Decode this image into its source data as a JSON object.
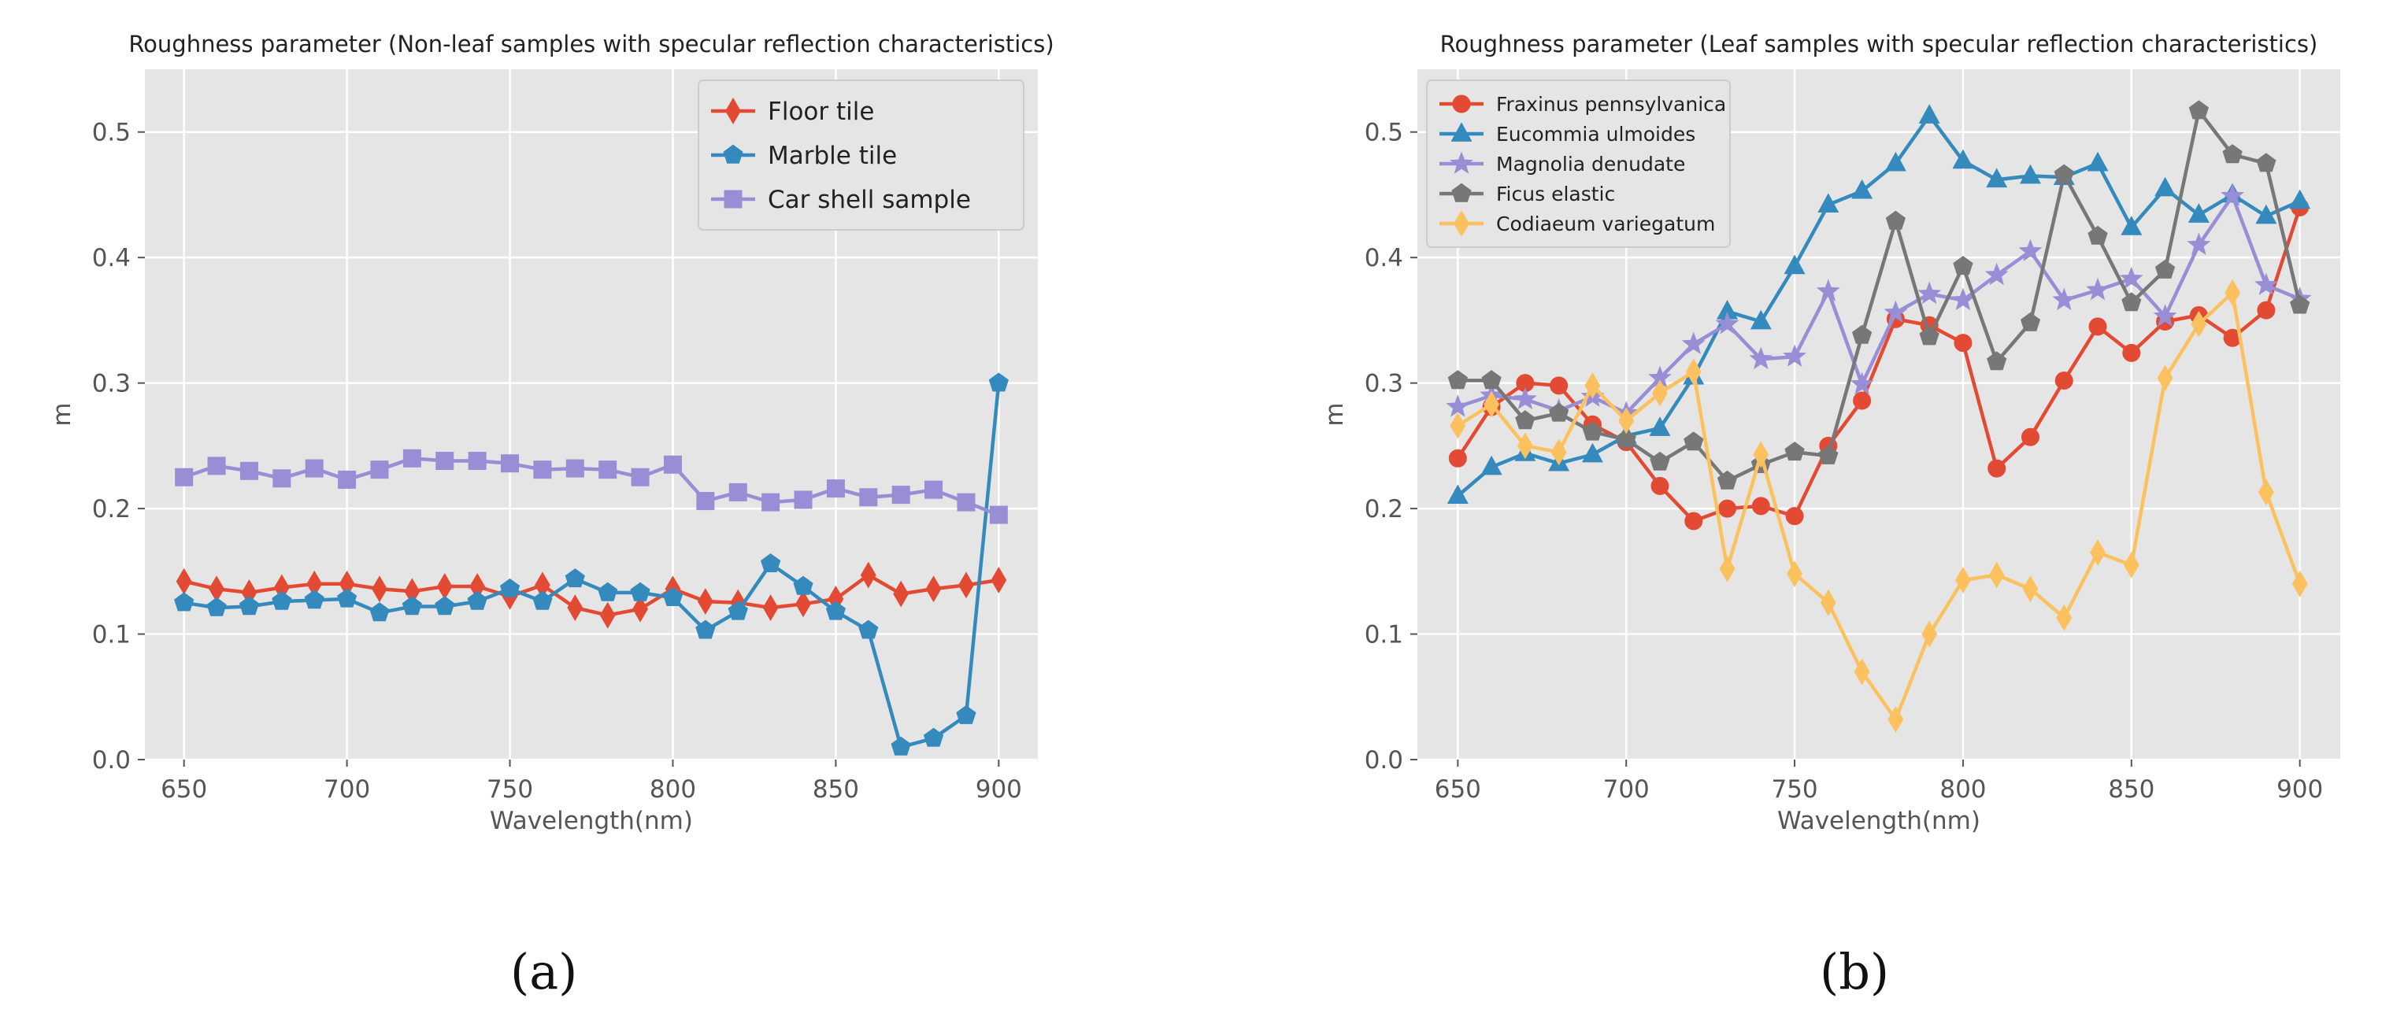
{
  "chart_data": [
    {
      "id": "a",
      "type": "line",
      "title": "Roughness parameter (Non-leaf samples with specular reflection characteristics)",
      "xlabel": "Wavelength(nm)",
      "ylabel": "m",
      "xlim": [
        638,
        912
      ],
      "ylim": [
        0,
        0.55
      ],
      "xticks": [
        650,
        700,
        750,
        800,
        850,
        900
      ],
      "yticks": [
        0.0,
        0.1,
        0.2,
        0.3,
        0.4,
        0.5
      ],
      "grid": true,
      "legend_position": "top-right",
      "x": [
        650,
        660,
        670,
        680,
        690,
        700,
        710,
        720,
        730,
        740,
        750,
        760,
        770,
        780,
        790,
        800,
        810,
        820,
        830,
        840,
        850,
        860,
        870,
        880,
        890,
        900
      ],
      "series": [
        {
          "name": "Floor tile",
          "color": "#e24a33",
          "marker": "diamond",
          "values": [
            0.142,
            0.136,
            0.133,
            0.137,
            0.14,
            0.14,
            0.136,
            0.134,
            0.138,
            0.138,
            0.13,
            0.139,
            0.121,
            0.115,
            0.12,
            0.136,
            0.126,
            0.125,
            0.121,
            0.124,
            0.128,
            0.147,
            0.132,
            0.136,
            0.139,
            0.143
          ]
        },
        {
          "name": "Marble tile",
          "color": "#348abd",
          "marker": "pentagon",
          "values": [
            0.125,
            0.121,
            0.122,
            0.126,
            0.127,
            0.128,
            0.117,
            0.122,
            0.122,
            0.126,
            0.136,
            0.126,
            0.144,
            0.133,
            0.133,
            0.129,
            0.103,
            0.118,
            0.156,
            0.138,
            0.118,
            0.103,
            0.01,
            0.017,
            0.035,
            0.3
          ]
        },
        {
          "name": "Car shell sample",
          "color": "#988ed5",
          "marker": "square",
          "values": [
            0.225,
            0.234,
            0.23,
            0.224,
            0.232,
            0.223,
            0.231,
            0.24,
            0.238,
            0.238,
            0.236,
            0.231,
            0.232,
            0.231,
            0.225,
            0.235,
            0.206,
            0.213,
            0.205,
            0.207,
            0.216,
            0.209,
            0.211,
            0.215,
            0.205,
            0.195
          ]
        }
      ],
      "caption": "(a)"
    },
    {
      "id": "b",
      "type": "line",
      "title": "Roughness parameter (Leaf samples with specular reflection characteristics)",
      "xlabel": "Wavelength(nm)",
      "ylabel": "m",
      "xlim": [
        638,
        912
      ],
      "ylim": [
        0,
        0.55
      ],
      "xticks": [
        650,
        700,
        750,
        800,
        850,
        900
      ],
      "yticks": [
        0.0,
        0.1,
        0.2,
        0.3,
        0.4,
        0.5
      ],
      "grid": true,
      "legend_position": "top-left",
      "x": [
        650,
        660,
        670,
        680,
        690,
        700,
        710,
        720,
        730,
        740,
        750,
        760,
        770,
        780,
        790,
        800,
        810,
        820,
        830,
        840,
        850,
        860,
        870,
        880,
        890,
        900
      ],
      "series": [
        {
          "name": "Fraxinus pennsylvanica",
          "color": "#e24a33",
          "marker": "circle",
          "values": [
            0.24,
            0.281,
            0.3,
            0.298,
            0.267,
            0.253,
            0.218,
            0.19,
            0.2,
            0.202,
            0.194,
            0.25,
            0.286,
            0.351,
            0.346,
            0.332,
            0.232,
            0.257,
            0.302,
            0.345,
            0.324,
            0.349,
            0.354,
            0.336,
            0.358,
            0.44
          ]
        },
        {
          "name": "Eucommia ulmoides",
          "color": "#348abd",
          "marker": "triangle",
          "values": [
            0.21,
            0.233,
            0.244,
            0.236,
            0.243,
            0.258,
            0.264,
            0.305,
            0.357,
            0.349,
            0.393,
            0.442,
            0.453,
            0.475,
            0.513,
            0.477,
            0.462,
            0.465,
            0.464,
            0.475,
            0.424,
            0.455,
            0.434,
            0.45,
            0.433,
            0.445
          ]
        },
        {
          "name": "Magnolia denudate",
          "color": "#988ed5",
          "marker": "star",
          "values": [
            0.281,
            0.29,
            0.287,
            0.278,
            0.289,
            0.276,
            0.304,
            0.331,
            0.347,
            0.319,
            0.321,
            0.373,
            0.299,
            0.356,
            0.371,
            0.366,
            0.386,
            0.405,
            0.366,
            0.374,
            0.383,
            0.353,
            0.41,
            0.449,
            0.378,
            0.367
          ]
        },
        {
          "name": "Ficus elastic",
          "color": "#777777",
          "marker": "pentagon",
          "values": [
            0.302,
            0.302,
            0.27,
            0.276,
            0.261,
            0.255,
            0.237,
            0.253,
            0.222,
            0.235,
            0.245,
            0.242,
            0.338,
            0.429,
            0.337,
            0.393,
            0.317,
            0.348,
            0.466,
            0.417,
            0.364,
            0.39,
            0.517,
            0.482,
            0.475,
            0.362
          ]
        },
        {
          "name": "Codiaeum variegatum",
          "color": "#fbc15e",
          "marker": "diamond",
          "values": [
            0.266,
            0.283,
            0.25,
            0.245,
            0.298,
            0.27,
            0.292,
            0.309,
            0.152,
            0.243,
            0.148,
            0.125,
            0.07,
            0.032,
            0.1,
            0.143,
            0.147,
            0.136,
            0.113,
            0.165,
            0.155,
            0.304,
            0.347,
            0.372,
            0.213,
            0.14
          ]
        }
      ],
      "caption": "(b)"
    }
  ]
}
